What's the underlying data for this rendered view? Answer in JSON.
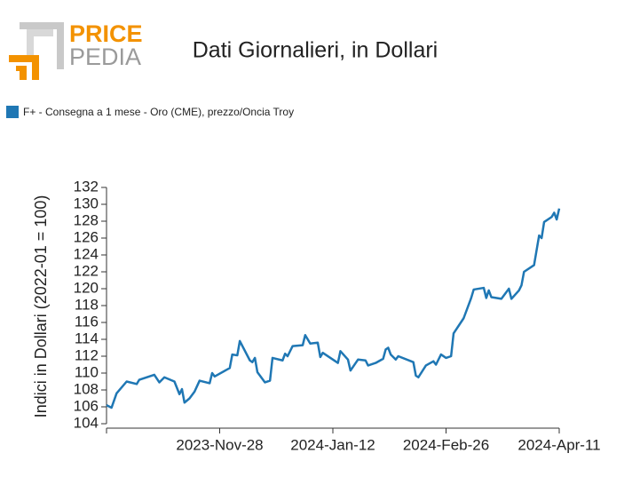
{
  "logo": {
    "line1": "PRICE",
    "line2": "PEDIA"
  },
  "chart_data": {
    "type": "line",
    "title": "Dati Giornalieri, in Dollari",
    "y_label": "Indici in Dollari (2022-01 = 100)",
    "x": [
      "2023-10-14",
      "2023-10-16",
      "2023-10-18",
      "2023-10-22",
      "2023-10-26",
      "2023-10-27",
      "2023-11-02",
      "2023-11-04",
      "2023-11-06",
      "2023-11-10",
      "2023-11-12",
      "2023-11-13",
      "2023-11-14",
      "2023-11-16",
      "2023-11-18",
      "2023-11-20",
      "2023-11-24",
      "2023-11-25",
      "2023-11-26",
      "2023-12-02",
      "2023-12-03",
      "2023-12-05",
      "2023-12-06",
      "2023-12-10",
      "2023-12-11",
      "2023-12-12",
      "2023-12-13",
      "2023-12-16",
      "2023-12-18",
      "2023-12-19",
      "2023-12-23",
      "2023-12-24",
      "2023-12-25",
      "2023-12-27",
      "2023-12-31",
      "2024-01-01",
      "2024-01-03",
      "2024-01-06",
      "2024-01-07",
      "2024-01-08",
      "2024-01-14",
      "2024-01-15",
      "2024-01-18",
      "2024-01-19",
      "2024-01-22",
      "2024-01-25",
      "2024-01-26",
      "2024-01-29",
      "2024-02-01",
      "2024-02-02",
      "2024-02-03",
      "2024-02-04",
      "2024-02-06",
      "2024-02-07",
      "2024-02-13",
      "2024-02-14",
      "2024-02-15",
      "2024-02-18",
      "2024-02-21",
      "2024-02-22",
      "2024-02-24",
      "2024-02-26",
      "2024-02-28",
      "2024-02-29",
      "2024-03-04",
      "2024-03-07",
      "2024-03-08",
      "2024-03-12",
      "2024-03-13",
      "2024-03-14",
      "2024-03-15",
      "2024-03-19",
      "2024-03-22",
      "2024-03-23",
      "2024-03-26",
      "2024-03-27",
      "2024-03-28",
      "2024-04-01",
      "2024-04-03",
      "2024-04-04",
      "2024-04-05",
      "2024-04-08",
      "2024-04-09",
      "2024-04-10",
      "2024-04-11"
    ],
    "series": [
      {
        "name": "F+ - Consegna a 1 mese - Oro (CME), prezzo/Oncia Troy",
        "color": "#1f77b4",
        "values": [
          106.2,
          105.9,
          107.6,
          109.0,
          108.7,
          109.2,
          109.8,
          108.9,
          109.5,
          109.0,
          107.5,
          108.1,
          106.5,
          107.0,
          107.8,
          109.1,
          108.8,
          110.0,
          109.6,
          110.6,
          112.2,
          112.1,
          113.8,
          111.5,
          111.3,
          111.8,
          110.1,
          108.9,
          109.1,
          111.8,
          111.5,
          112.3,
          112.0,
          113.2,
          113.3,
          114.5,
          113.5,
          113.6,
          111.9,
          112.4,
          111.2,
          112.6,
          111.6,
          110.3,
          111.6,
          111.5,
          110.9,
          111.2,
          111.7,
          112.8,
          113.0,
          112.2,
          111.6,
          112.0,
          111.3,
          109.7,
          109.5,
          110.9,
          111.4,
          111.0,
          112.2,
          111.8,
          112.0,
          114.7,
          116.5,
          118.9,
          119.9,
          120.1,
          118.9,
          119.8,
          119.0,
          118.8,
          120.0,
          118.8,
          119.8,
          120.4,
          122.0,
          122.8,
          126.3,
          126.0,
          127.9,
          128.5,
          129.0,
          128.2,
          129.5
        ]
      }
    ],
    "xlim": [
      "2023-10-14",
      "2024-04-11"
    ],
    "xticks": [
      {
        "value": "2023-11-28",
        "label": "2023-Nov-28"
      },
      {
        "value": "2024-01-12",
        "label": "2024-Jan-12"
      },
      {
        "value": "2024-02-26",
        "label": "2024-Feb-26"
      },
      {
        "value": "2024-04-11",
        "label": "2024-Apr-11"
      }
    ],
    "ylim": [
      104,
      132
    ],
    "yticks": [
      104,
      106,
      108,
      110,
      112,
      114,
      116,
      118,
      120,
      122,
      124,
      126,
      128,
      130,
      132
    ],
    "grid": false,
    "legend": "top-left"
  }
}
